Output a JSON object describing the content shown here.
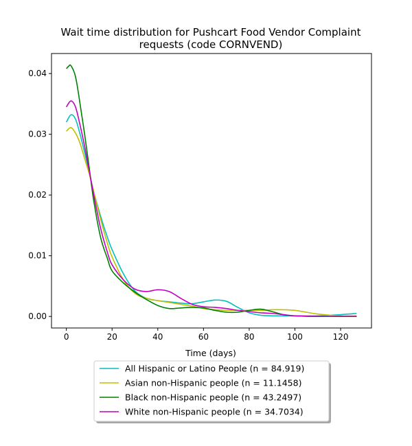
{
  "chart_data": {
    "type": "line",
    "title": "Wait time distribution  for Pushcart Food Vendor Complaint requests (code CORNVEND)",
    "title_lines": [
      "Wait time distribution  for Pushcart Food Vendor Complaint",
      "requests (code CORNVEND)"
    ],
    "xlabel": "Time (days)",
    "ylabel": "",
    "xlim": [
      -6.5,
      133.5
    ],
    "ylim": [
      -0.0019,
      0.0433
    ],
    "x_ticks": [
      0,
      20,
      40,
      60,
      80,
      100,
      120
    ],
    "x_tick_labels": [
      "0",
      "20",
      "40",
      "60",
      "80",
      "100",
      "120"
    ],
    "y_ticks": [
      0.0,
      0.01,
      0.02,
      0.03,
      0.04
    ],
    "y_tick_labels": [
      "0.00",
      "0.01",
      "0.02",
      "0.03",
      "0.04"
    ],
    "grid": false,
    "legend_position": "below plot",
    "series": [
      {
        "name": "All Hispanic or Latino People (n = 84.919)",
        "color": "#00bfbf",
        "x": [
          0,
          2,
          4,
          6,
          8,
          10,
          12,
          15,
          18,
          20,
          25,
          30,
          35,
          40,
          45,
          50,
          55,
          60,
          65,
          70,
          75,
          80,
          85,
          90,
          95,
          100,
          110,
          120,
          127
        ],
        "y": [
          0.032,
          0.0332,
          0.0325,
          0.03,
          0.027,
          0.0238,
          0.0205,
          0.0165,
          0.013,
          0.011,
          0.007,
          0.0042,
          0.003,
          0.0026,
          0.0024,
          0.0022,
          0.0021,
          0.0024,
          0.0027,
          0.0025,
          0.0015,
          0.0006,
          0.0002,
          0.0001,
          0.0001,
          0.0001,
          0.0001,
          0.0003,
          0.0005
        ]
      },
      {
        "name": "Asian non-Hispanic people (n = 11.1458)",
        "color": "#bfbf00",
        "x": [
          0,
          2,
          4,
          6,
          8,
          10,
          12,
          15,
          18,
          20,
          25,
          30,
          35,
          40,
          45,
          50,
          55,
          60,
          65,
          70,
          75,
          80,
          85,
          90,
          95,
          100,
          105,
          110,
          120,
          127
        ],
        "y": [
          0.0305,
          0.0311,
          0.0302,
          0.0285,
          0.026,
          0.0235,
          0.0205,
          0.016,
          0.012,
          0.0098,
          0.006,
          0.0038,
          0.003,
          0.0026,
          0.0023,
          0.002,
          0.0017,
          0.0013,
          0.0011,
          0.001,
          0.001,
          0.001,
          0.001,
          0.0011,
          0.0011,
          0.001,
          0.0007,
          0.0004,
          0.0001,
          0.0001
        ]
      },
      {
        "name": "Black non-Hispanic people (n = 43.2497)",
        "color": "#008000",
        "x": [
          0,
          1,
          2,
          4,
          6,
          8,
          10,
          12,
          15,
          18,
          20,
          25,
          30,
          35,
          40,
          45,
          50,
          55,
          60,
          65,
          70,
          75,
          80,
          85,
          90,
          95,
          100,
          110,
          120,
          127
        ],
        "y": [
          0.0408,
          0.0412,
          0.0413,
          0.0395,
          0.035,
          0.03,
          0.0245,
          0.019,
          0.013,
          0.0095,
          0.0075,
          0.0055,
          0.004,
          0.0028,
          0.0018,
          0.0013,
          0.0014,
          0.0015,
          0.0014,
          0.001,
          0.0007,
          0.0007,
          0.001,
          0.0012,
          0.0008,
          0.0003,
          0.0001,
          0.0,
          0.0,
          0.0
        ]
      },
      {
        "name": "White non-Hispanic people (n = 34.7034)",
        "color": "#bf00bf",
        "x": [
          0,
          2,
          4,
          6,
          8,
          10,
          12,
          15,
          18,
          20,
          25,
          30,
          35,
          40,
          45,
          50,
          55,
          60,
          65,
          70,
          75,
          80,
          85,
          90,
          95,
          100,
          110,
          120,
          127
        ],
        "y": [
          0.0345,
          0.0355,
          0.0345,
          0.0315,
          0.028,
          0.024,
          0.02,
          0.0145,
          0.0105,
          0.0085,
          0.006,
          0.0045,
          0.0041,
          0.0044,
          0.0041,
          0.003,
          0.002,
          0.0016,
          0.0015,
          0.0013,
          0.001,
          0.0008,
          0.0006,
          0.0005,
          0.0003,
          0.0001,
          0.0,
          0.0,
          0.0
        ]
      }
    ]
  }
}
